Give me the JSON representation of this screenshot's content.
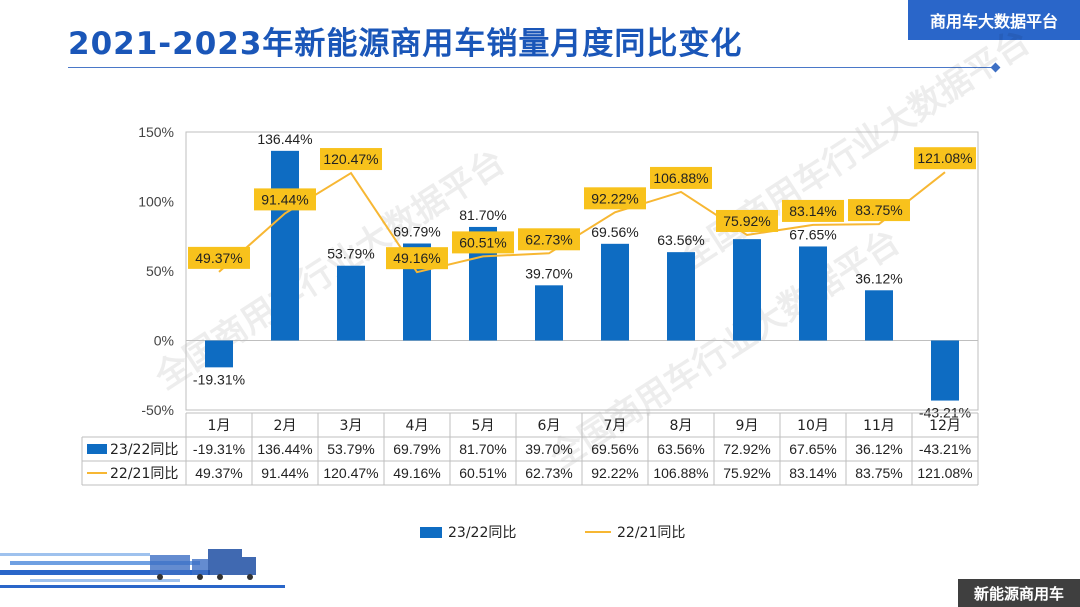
{
  "header": {
    "title": "2021-2023年新能源商用车销量月度同比变化",
    "brand": "商用车大数据平台"
  },
  "footer": {
    "label": "新能源商用车"
  },
  "watermark": {
    "text": "全国商用车行业大数据平台"
  },
  "colors": {
    "bar": "#0e6cc2",
    "line": "#f7b733",
    "label_bg": "#f8c21c",
    "title": "#1a56b8"
  },
  "chart_data": {
    "type": "bar",
    "categories": [
      "1月",
      "2月",
      "3月",
      "4月",
      "5月",
      "6月",
      "7月",
      "8月",
      "9月",
      "10月",
      "11月",
      "12月"
    ],
    "series": [
      {
        "name": "23/22同比",
        "type": "bar",
        "values": [
          -19.31,
          136.44,
          53.79,
          69.79,
          81.7,
          39.7,
          69.56,
          63.56,
          72.92,
          67.65,
          36.12,
          -43.21
        ],
        "labels": [
          "-19.31%",
          "136.44%",
          "53.79%",
          "69.79%",
          "81.70%",
          "39.70%",
          "69.56%",
          "63.56%",
          "72.92%",
          "67.65%",
          "36.12%",
          "-43.21%"
        ]
      },
      {
        "name": "22/21同比",
        "type": "line",
        "values": [
          49.37,
          91.44,
          120.47,
          49.16,
          60.51,
          62.73,
          92.22,
          106.88,
          75.92,
          83.14,
          83.75,
          121.08
        ],
        "labels": [
          "49.37%",
          "91.44%",
          "120.47%",
          "49.16%",
          "60.51%",
          "62.73%",
          "92.22%",
          "106.88%",
          "75.92%",
          "83.14%",
          "83.75%",
          "121.08%"
        ]
      }
    ],
    "ylim": [
      -50,
      150
    ],
    "yticks": [
      -50,
      0,
      50,
      100,
      150
    ],
    "ytick_labels": [
      "-50%",
      "0%",
      "50%",
      "100%",
      "150%"
    ],
    "legend_position": "bottom",
    "data_table": true
  }
}
